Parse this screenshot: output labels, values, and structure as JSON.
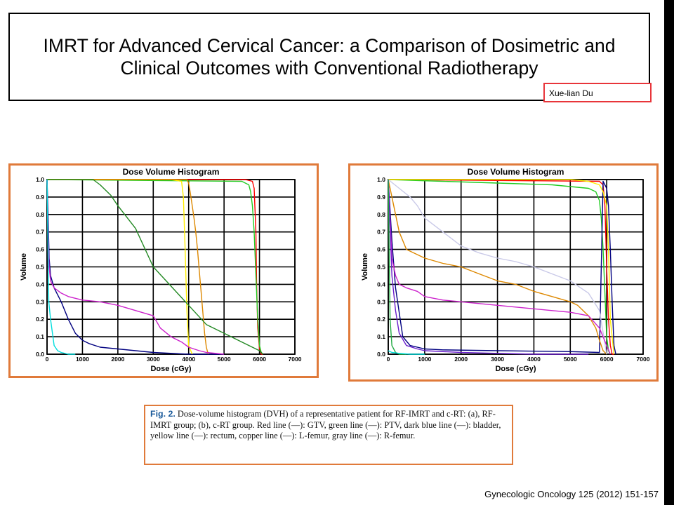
{
  "slide": {
    "title": "IMRT for Advanced Cervical Cancer: a Comparison of Dosimetric and Clinical Outcomes with Conventional Radiotherapy",
    "author": "Xue-lian Du",
    "citation": "Gynecologic Oncology 125 (2012) 151-157",
    "caption": {
      "label": "Fig. 2.",
      "text": "Dose-volume histogram (DVH) of a representative patient for RF-IMRT and c-RT: (a), RF-IMRT group; (b), c-RT group. Red line (—): GTV, green line (—): PTV, dark blue line (—): bladder, yellow line (—): rectum, copper line (—): L-femur, gray line (—): R-femur."
    }
  },
  "colors": {
    "panel_border": "#e07a3a",
    "author_border": "#e8353a"
  },
  "chart_data": [
    {
      "type": "line",
      "title": "Dose Volume Histogram",
      "xlabel": "Dose (cGy)",
      "ylabel": "Volume",
      "xlim": [
        0,
        7000
      ],
      "ylim": [
        0,
        1.0
      ],
      "xticks": [
        "0",
        "1000",
        "2000",
        "3000",
        "4000",
        "5000",
        "6000",
        "7000"
      ],
      "yticks": [
        "0.0",
        "0.1",
        "0.2",
        "0.3",
        "0.4",
        "0.5",
        "0.6",
        "0.7",
        "0.8",
        "0.9",
        "1.0"
      ],
      "grid": true,
      "series": [
        {
          "color": "#ff0000",
          "x": [
            0,
            5600,
            5800,
            5850,
            5900,
            5920,
            5950,
            6000,
            6050,
            6100
          ],
          "y": [
            1.0,
            1.0,
            0.99,
            0.95,
            0.7,
            0.4,
            0.15,
            0.03,
            0.0,
            0.0
          ]
        },
        {
          "color": "#22cc22",
          "x": [
            0,
            5500,
            5700,
            5750,
            5800,
            5850,
            5900,
            5950,
            6000,
            6050,
            6100
          ],
          "y": [
            1.0,
            0.99,
            0.97,
            0.93,
            0.85,
            0.7,
            0.45,
            0.2,
            0.05,
            0.01,
            0.0
          ]
        },
        {
          "color": "#000080",
          "x": [
            0,
            30,
            60,
            100,
            200,
            400,
            600,
            800,
            1000,
            1200,
            1500,
            2000,
            3000,
            4000,
            5000
          ],
          "y": [
            1.0,
            0.8,
            0.55,
            0.45,
            0.38,
            0.3,
            0.2,
            0.12,
            0.08,
            0.06,
            0.04,
            0.03,
            0.01,
            0.0,
            0.0
          ]
        },
        {
          "color": "#ffee00",
          "x": [
            0,
            3500,
            3800,
            3850,
            3900,
            3950,
            4000,
            4100
          ],
          "y": [
            1.0,
            1.0,
            0.99,
            0.9,
            0.6,
            0.25,
            0.05,
            0.0
          ]
        },
        {
          "color": "#dd8800",
          "x": [
            0,
            3950,
            4000,
            4050,
            4100,
            4150,
            4200,
            4250,
            4300,
            4350,
            4400,
            4450,
            4500,
            4550
          ],
          "y": [
            1.0,
            1.0,
            0.98,
            0.92,
            0.85,
            0.78,
            0.7,
            0.6,
            0.48,
            0.36,
            0.24,
            0.12,
            0.04,
            0.0
          ]
        },
        {
          "color": "#228822",
          "x": [
            0,
            1300,
            1500,
            1800,
            2000,
            2500,
            3000,
            3500,
            4000,
            4500,
            5000,
            5500,
            6000,
            6100
          ],
          "y": [
            1.0,
            1.0,
            0.97,
            0.91,
            0.85,
            0.72,
            0.5,
            0.39,
            0.28,
            0.17,
            0.12,
            0.07,
            0.02,
            0.0
          ]
        },
        {
          "color": "#cc22cc",
          "x": [
            0,
            30,
            60,
            100,
            200,
            400,
            600,
            800,
            1000,
            1500,
            2000,
            3000,
            3200,
            3500,
            3800,
            4000,
            4300,
            4500,
            5000
          ],
          "y": [
            1.0,
            0.7,
            0.5,
            0.42,
            0.38,
            0.35,
            0.33,
            0.32,
            0.31,
            0.3,
            0.28,
            0.22,
            0.15,
            0.1,
            0.07,
            0.04,
            0.02,
            0.01,
            0.0
          ]
        },
        {
          "color": "#00dddd",
          "x": [
            0,
            50,
            100,
            200,
            300,
            400,
            600,
            800
          ],
          "y": [
            1.0,
            0.3,
            0.2,
            0.05,
            0.02,
            0.01,
            0.0,
            0.0
          ]
        }
      ]
    },
    {
      "type": "line",
      "title": "Dose Volume Histogram",
      "xlabel": "Dose (cGy)",
      "ylabel": "Volume",
      "xlim": [
        0,
        7000
      ],
      "ylim": [
        0,
        1.0
      ],
      "xticks": [
        "0",
        "1000",
        "2000",
        "3000",
        "4000",
        "5000",
        "6000",
        "7000"
      ],
      "yticks": [
        "0.0",
        "0.1",
        "0.2",
        "0.3",
        "0.4",
        "0.5",
        "0.6",
        "0.7",
        "0.8",
        "0.9",
        "1.0"
      ],
      "grid": true,
      "series": [
        {
          "color": "#ff0000",
          "x": [
            0,
            5800,
            5900,
            5950,
            6000,
            6050,
            6100,
            6150,
            6200
          ],
          "y": [
            1.0,
            0.99,
            0.97,
            0.85,
            0.5,
            0.2,
            0.05,
            0.0,
            0.0
          ]
        },
        {
          "color": "#22cc22",
          "x": [
            0,
            1500,
            3000,
            4500,
            5500,
            5700,
            5800,
            5850,
            5900,
            5950,
            6000,
            6050,
            6100
          ],
          "y": [
            1.0,
            0.99,
            0.98,
            0.97,
            0.95,
            0.93,
            0.88,
            0.78,
            0.6,
            0.35,
            0.1,
            0.02,
            0.0
          ]
        },
        {
          "color": "#000080",
          "x": [
            0,
            100,
            200,
            400,
            600,
            1000,
            1500,
            3000,
            5000,
            5800,
            5900,
            6000,
            6050,
            6100,
            6150,
            6200,
            6250
          ],
          "y": [
            1.0,
            0.65,
            0.38,
            0.1,
            0.05,
            0.03,
            0.025,
            0.02,
            0.015,
            0.01,
            0.99,
            0.95,
            0.85,
            0.6,
            0.3,
            0.05,
            0.0
          ]
        },
        {
          "color": "#ffee00",
          "x": [
            0,
            5000,
            5500,
            5800,
            5900,
            6000,
            6050,
            6100,
            6200
          ],
          "y": [
            1.0,
            1.0,
            0.99,
            0.97,
            0.93,
            0.85,
            0.6,
            0.2,
            0.0
          ]
        },
        {
          "color": "#dd8800",
          "x": [
            0,
            150,
            300,
            500,
            1000,
            1500,
            2000,
            2500,
            3000,
            3500,
            4000,
            4500,
            5000,
            5200,
            5500,
            5700,
            5800,
            5900,
            6000
          ],
          "y": [
            1.0,
            0.85,
            0.7,
            0.6,
            0.55,
            0.52,
            0.5,
            0.46,
            0.42,
            0.4,
            0.36,
            0.33,
            0.3,
            0.28,
            0.22,
            0.15,
            0.08,
            0.02,
            0.0
          ]
        },
        {
          "color": "#c9c9e8",
          "x": [
            0,
            300,
            600,
            800,
            1000,
            1500,
            2000,
            2500,
            3000,
            3500,
            4000,
            4500,
            5000,
            5500,
            5800,
            6000
          ],
          "y": [
            1.0,
            0.95,
            0.9,
            0.85,
            0.78,
            0.7,
            0.62,
            0.58,
            0.55,
            0.53,
            0.5,
            0.46,
            0.42,
            0.35,
            0.25,
            0.0
          ]
        },
        {
          "color": "#cc22cc",
          "x": [
            0,
            100,
            200,
            300,
            500,
            800,
            1000,
            1500,
            2000,
            3000,
            4000,
            4500,
            5000,
            5500,
            5800,
            6000,
            6100
          ],
          "y": [
            1.0,
            0.55,
            0.45,
            0.4,
            0.38,
            0.36,
            0.33,
            0.31,
            0.3,
            0.28,
            0.26,
            0.25,
            0.24,
            0.22,
            0.15,
            0.05,
            0.0
          ]
        },
        {
          "color": "#6a1ecc",
          "x": [
            0,
            100,
            200,
            300,
            500,
            800,
            1000,
            2000,
            3000,
            4000,
            5000,
            5500
          ],
          "y": [
            1.0,
            0.45,
            0.25,
            0.12,
            0.05,
            0.03,
            0.02,
            0.01,
            0.005,
            0.0,
            0.0,
            0.0
          ]
        },
        {
          "color": "#22aa44",
          "x": [
            0,
            50,
            100,
            200,
            300,
            500
          ],
          "y": [
            1.0,
            0.2,
            0.05,
            0.01,
            0.0,
            0.0
          ]
        },
        {
          "color": "#00dddd",
          "x": [
            0,
            100,
            300,
            600,
            1000
          ],
          "y": [
            0.02,
            0.01,
            0.005,
            0.0,
            0.0
          ]
        }
      ]
    }
  ]
}
